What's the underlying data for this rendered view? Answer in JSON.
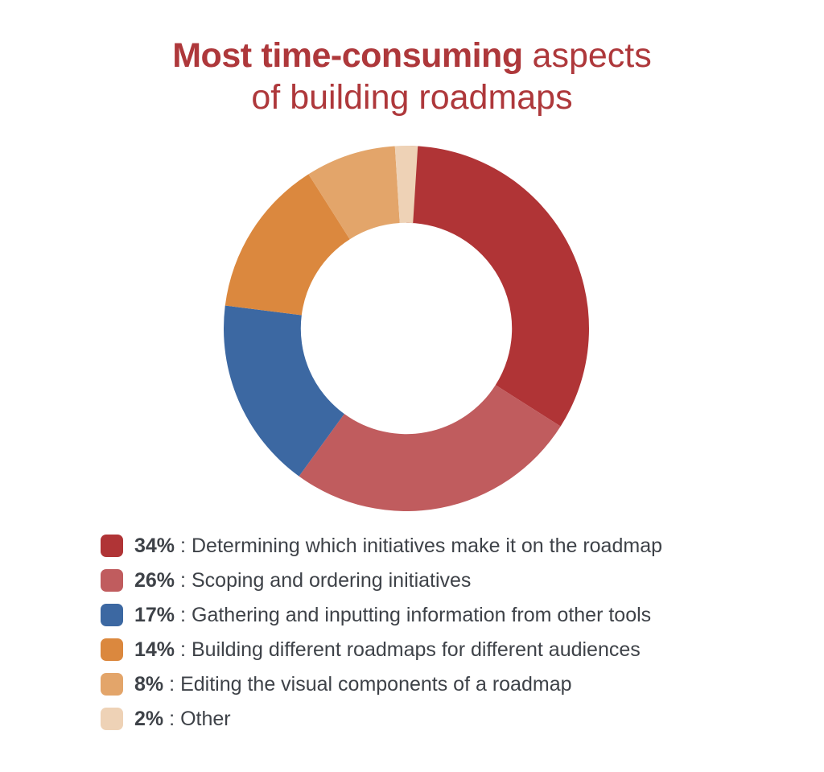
{
  "page": {
    "background": "#ffffff"
  },
  "title": {
    "word_heavy": "Most",
    "word_bold": "time-consuming",
    "word_regular": "aspects",
    "line2": "of building roadmaps",
    "color": "#AE383B"
  },
  "legend": {
    "separator": ":",
    "text_color": "#3E4248"
  },
  "chart_data": {
    "type": "pie",
    "variant": "donut",
    "title": "Most time-consuming aspects of building roadmaps",
    "categories": [
      "Determining which initiatives make it on the roadmap",
      "Scoping and ordering initiatives",
      "Gathering and inputting information from other tools",
      "Building different roadmaps for different audiences",
      "Editing the visual components of a roadmap",
      "Other"
    ],
    "values": [
      34,
      26,
      17,
      14,
      8,
      2
    ],
    "unit": "%",
    "colors": [
      "#B03436",
      "#C05C5E",
      "#3C68A2",
      "#DB883E",
      "#E3A56A",
      "#EED2B6"
    ],
    "start_angle_deg": 0,
    "direction": "clockwise",
    "inner_radius_ratio": 0.578,
    "legend_position": "bottom-left",
    "grid": false
  }
}
